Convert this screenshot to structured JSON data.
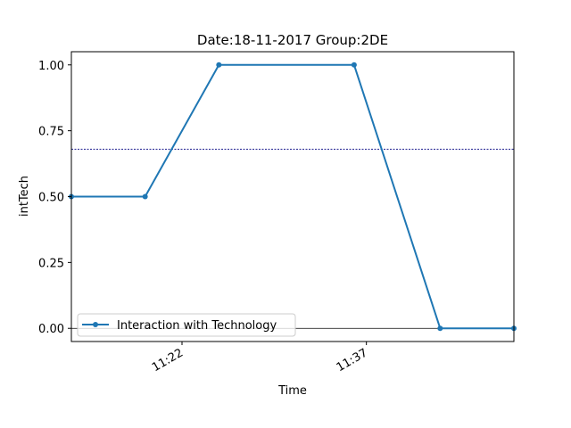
{
  "chart_data": {
    "type": "line",
    "title": "Date:18-11-2017  Group:2DE",
    "xlabel": "Time",
    "ylabel": "intTech",
    "ylim": [
      -0.05,
      1.05
    ],
    "xlim": [
      "11:13",
      "11:49"
    ],
    "yticks": [
      {
        "value": 0.0,
        "label": "0.00"
      },
      {
        "value": 0.25,
        "label": "0.25"
      },
      {
        "value": 0.5,
        "label": "0.50"
      },
      {
        "value": 0.75,
        "label": "0.75"
      },
      {
        "value": 1.0,
        "label": "1.00"
      }
    ],
    "xticks": [
      {
        "value": "11:22",
        "label": "11:22"
      },
      {
        "value": "11:37",
        "label": "11:37"
      }
    ],
    "series": [
      {
        "name": "Interaction with Technology",
        "color": "#1f77b4",
        "x": [
          "11:13",
          "11:19",
          "11:25",
          "11:36",
          "11:43",
          "11:49"
        ],
        "y": [
          0.5,
          0.5,
          1.0,
          1.0,
          0.0,
          0.0
        ]
      }
    ],
    "reference_lines": [
      {
        "y": 0.68,
        "style": "dashed",
        "color": "#000080"
      },
      {
        "y": 0.0,
        "style": "solid",
        "color": "#000000"
      }
    ],
    "legend": "lower-left",
    "grid": false
  }
}
